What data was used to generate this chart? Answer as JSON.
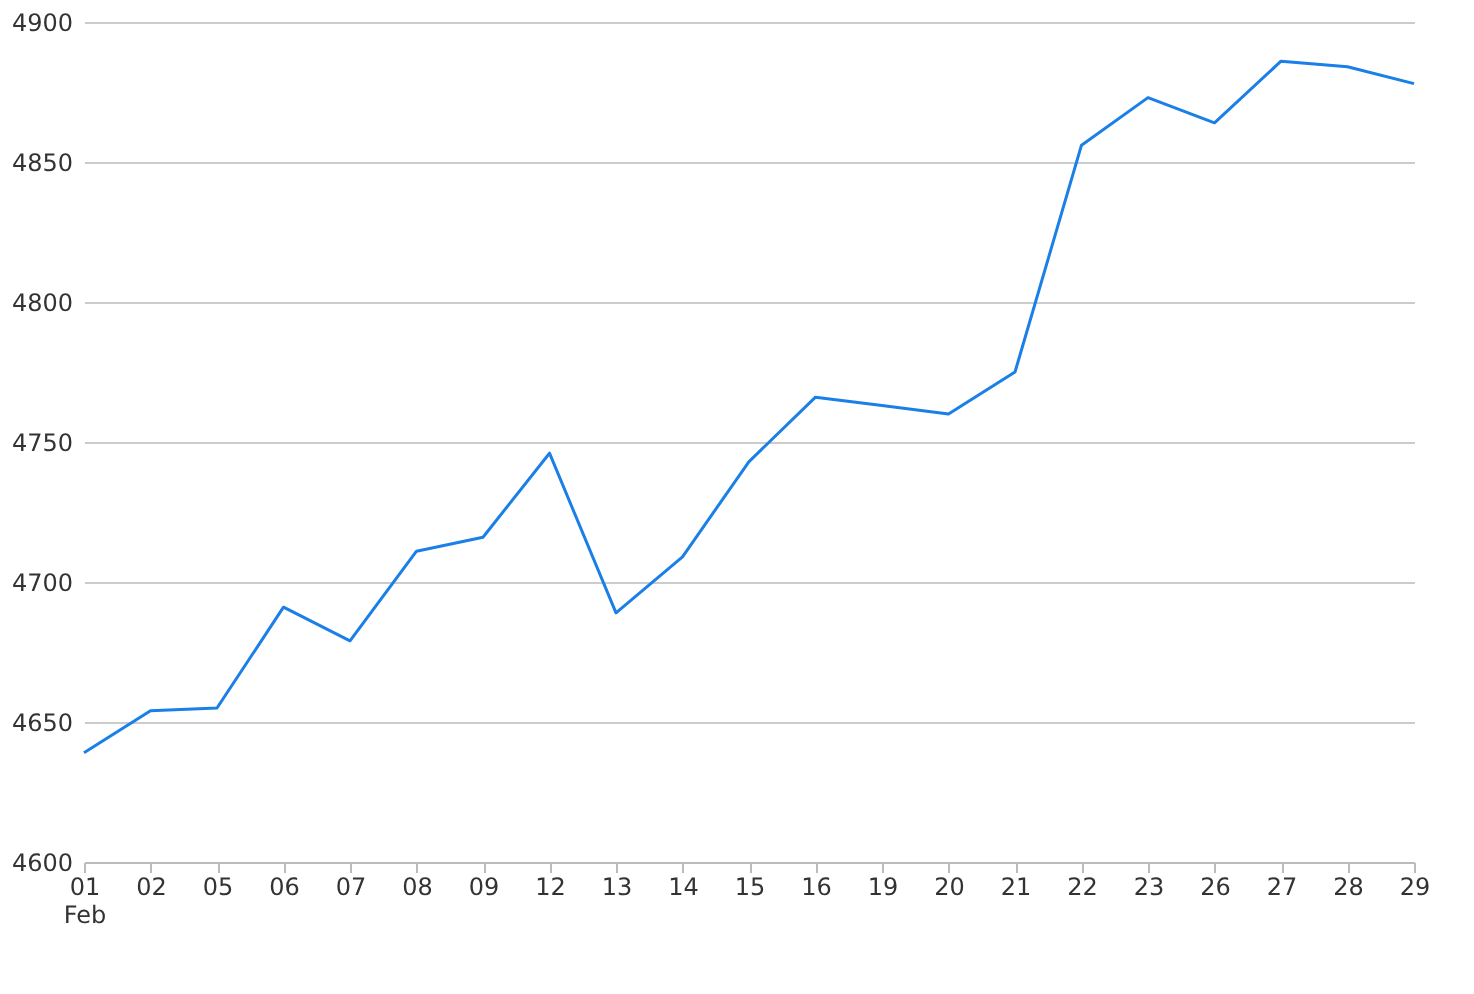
{
  "chart_data": {
    "type": "line",
    "categories": [
      "01\nFeb",
      "02",
      "05",
      "06",
      "07",
      "08",
      "09",
      "12",
      "13",
      "14",
      "15",
      "16",
      "19",
      "20",
      "21",
      "22",
      "23",
      "26",
      "27",
      "28",
      "29"
    ],
    "series": [
      {
        "color": "#1a7fe6",
        "values": [
          4639,
          4654,
          4655,
          4691,
          4679,
          4711,
          4716,
          4746,
          4689,
          4709,
          4743,
          4766,
          4763,
          4760,
          4775,
          4856,
          4873,
          4864,
          4886,
          4884,
          4878
        ]
      }
    ],
    "ylim": [
      4600,
      4900
    ],
    "yticks": [
      4600,
      4650,
      4700,
      4750,
      4800,
      4850,
      4900
    ],
    "grid": "y",
    "legend": false,
    "marker": "none",
    "line_style": "solid"
  }
}
